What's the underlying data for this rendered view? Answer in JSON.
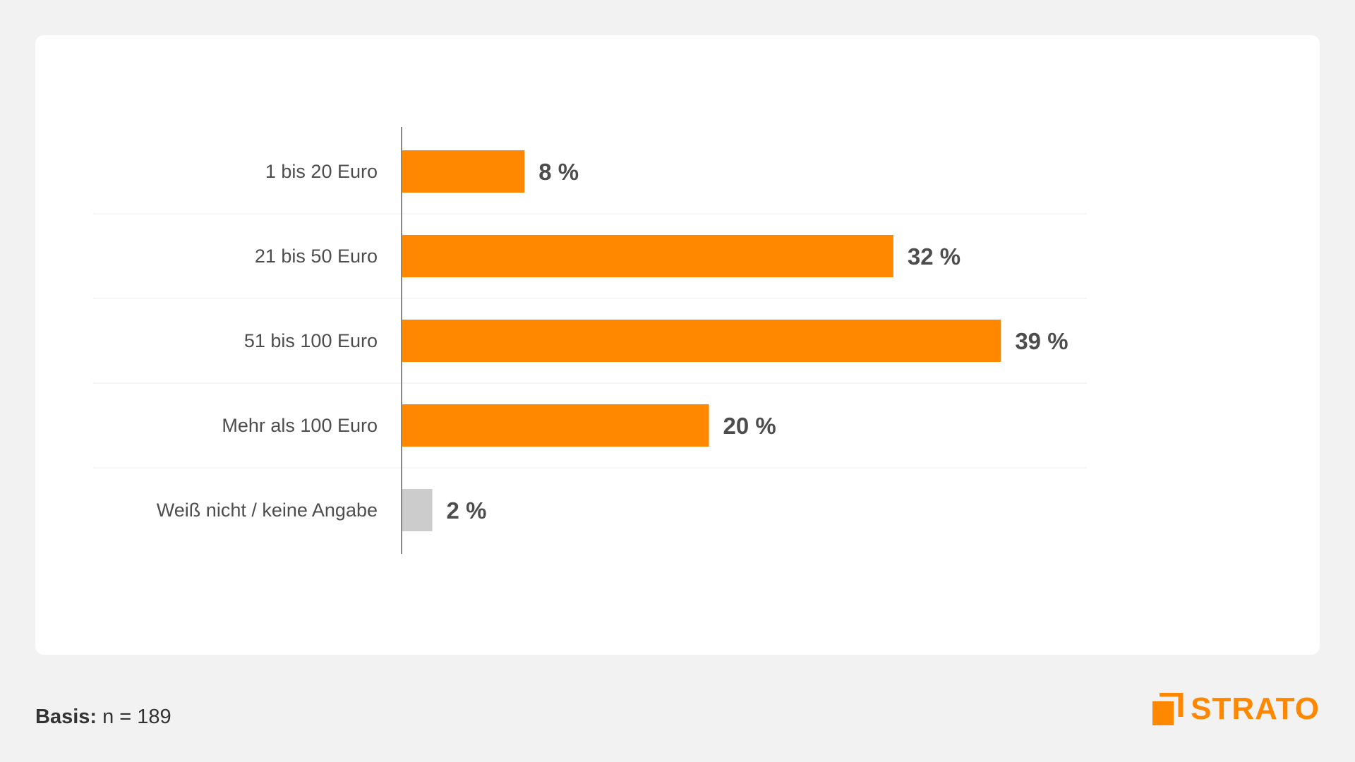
{
  "colors": {
    "accent": "#ff8800",
    "neutral": "#cccccc",
    "text": "#4d4d4d"
  },
  "chart_data": {
    "type": "bar",
    "orientation": "horizontal",
    "categories": [
      "1 bis 20 Euro",
      "21 bis 50 Euro",
      "51 bis 100 Euro",
      "Mehr als 100 Euro",
      "Weiß nicht / keine Angabe"
    ],
    "values": [
      8,
      32,
      39,
      20,
      2
    ],
    "value_labels": [
      "8 %",
      "32 %",
      "39 %",
      "20 %",
      "2 %"
    ],
    "bar_colors": [
      "#ff8800",
      "#ff8800",
      "#ff8800",
      "#ff8800",
      "#cccccc"
    ],
    "xlim": [
      0,
      45
    ],
    "title": "",
    "xlabel": "",
    "ylabel": ""
  },
  "footer": {
    "basis_label": "Basis:",
    "basis_value": " n = 189"
  },
  "logo": {
    "text": "STRATO",
    "color": "#ff8800"
  }
}
